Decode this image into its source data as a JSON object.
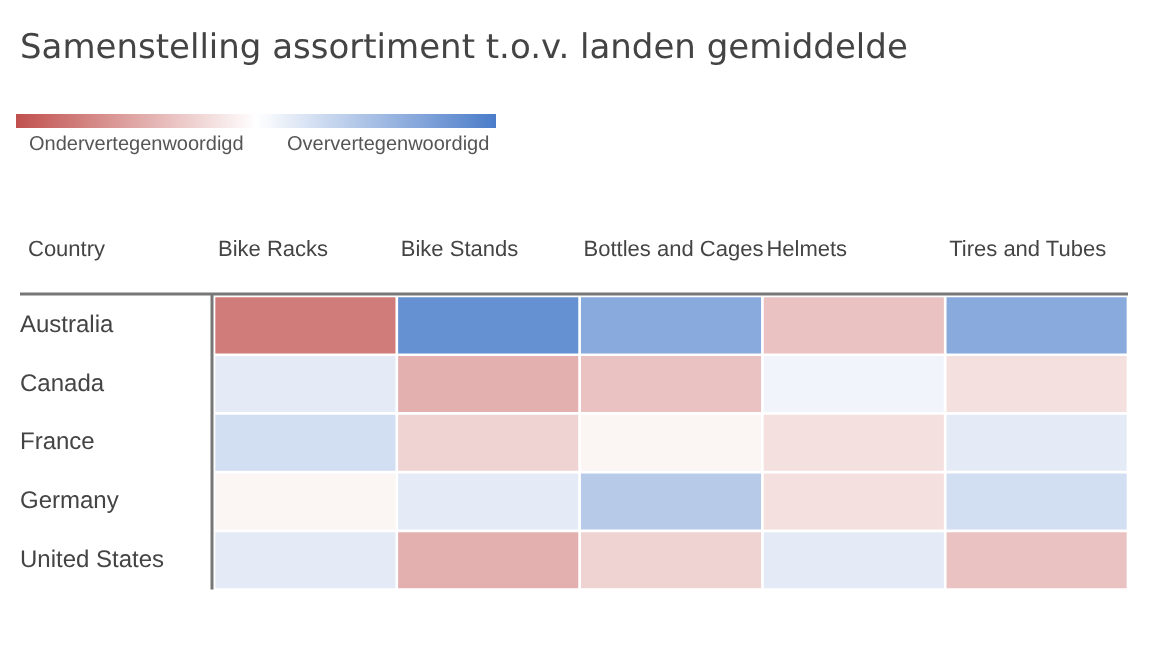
{
  "chart_data": {
    "type": "heatmap",
    "title": "Samenstelling assortiment t.o.v. landen gemiddelde",
    "xlabel": "Country",
    "categories": [
      "Bike Racks",
      "Bike Stands",
      "Bottles and Cages",
      "Helmets",
      "Tires and Tubes"
    ],
    "y_categories": [
      "Australia",
      "Canada",
      "France",
      "Germany",
      "United States"
    ],
    "cells": [
      [
        -0.75,
        0.85,
        0.65,
        -0.35,
        0.65
      ],
      [
        0.15,
        -0.45,
        -0.35,
        0.08,
        -0.18
      ],
      [
        0.25,
        -0.25,
        -0.06,
        -0.18,
        0.15
      ],
      [
        -0.06,
        0.15,
        0.4,
        -0.18,
        0.25
      ],
      [
        0.15,
        -0.45,
        -0.25,
        0.15,
        -0.35
      ]
    ],
    "clim": [
      -1,
      1
    ],
    "cticks": [
      {
        "value": -0.5,
        "label": "Ondervertegenwoordigd"
      },
      {
        "value": 0.55,
        "label": "Oververtegenwoordigd"
      }
    ]
  }
}
